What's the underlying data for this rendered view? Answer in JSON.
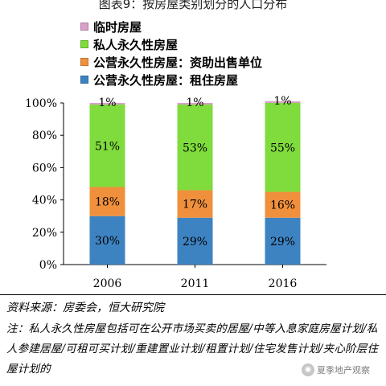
{
  "title": "图表9：按房屋类别划分的人口分布",
  "legend": [
    {
      "label": "临时房屋",
      "color": "#d9a0c8"
    },
    {
      "label": "私人永久性房屋",
      "color": "#7fdc3c"
    },
    {
      "label": "公营永久性房屋：资助出售单位",
      "color": "#f0903c"
    },
    {
      "label": "公营永久性房屋：租住房屋",
      "color": "#3d83c2"
    }
  ],
  "chart_data": {
    "type": "bar",
    "stacked": true,
    "categories": [
      "2006",
      "2011",
      "2016"
    ],
    "series": [
      {
        "name": "公营永久性房屋：租住房屋",
        "values": [
          30,
          29,
          29
        ],
        "labels": [
          "30%",
          "29%",
          "29%"
        ],
        "color": "#3d83c2"
      },
      {
        "name": "公营永久性房屋：资助出售单位",
        "values": [
          18,
          17,
          16
        ],
        "labels": [
          "18%",
          "17%",
          "16%"
        ],
        "color": "#f0903c"
      },
      {
        "name": "私人永久性房屋",
        "values": [
          51,
          53,
          55
        ],
        "labels": [
          "51%",
          "53%",
          "55%"
        ],
        "color": "#7fdc3c"
      },
      {
        "name": "临时房屋",
        "values": [
          1,
          1,
          1
        ],
        "labels": [
          "1%",
          "1%",
          "1%"
        ],
        "color": "#d9a0c8"
      }
    ],
    "ylim": [
      0,
      100
    ],
    "yticks": [
      "0%",
      "20%",
      "40%",
      "60%",
      "80%",
      "100%"
    ],
    "grid": false
  },
  "source": "资料来源：房委会，恒大研究院",
  "note": "注：私人永久性房屋包括可在公开市场买卖的居屋/中等入息家庭房屋计划/私人参建居屋/可租可买计划/重建置业计划/租置计划/住宅发售计划/夹心阶层住屋计划的",
  "watermark": "夏季地产观察"
}
